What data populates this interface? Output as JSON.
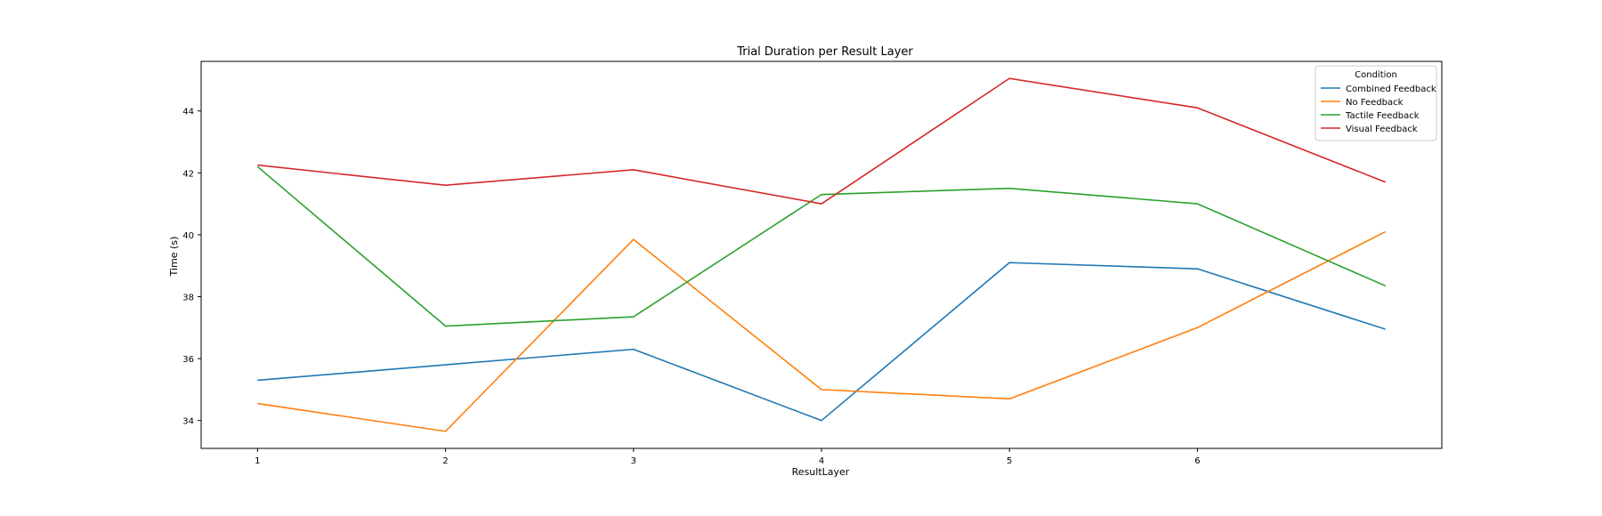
{
  "chart_data": {
    "type": "line",
    "title": "Trial Duration per Result Layer",
    "xlabel": "ResultLayer",
    "ylabel": "Time (s)",
    "x": [
      1,
      2,
      3,
      4,
      5,
      6,
      7
    ],
    "xticks": [
      "1",
      "2",
      "3",
      "4",
      "5",
      "6"
    ],
    "xlim": [
      0.7,
      7.3
    ],
    "ylim": [
      33.1,
      45.6
    ],
    "yticks": [
      34,
      36,
      38,
      40,
      42,
      44
    ],
    "grid": false,
    "legend": {
      "title": "Condition",
      "placement": "top-right"
    },
    "series": [
      {
        "name": "Combined Feedback",
        "color": "#1f77b4",
        "values": [
          35.3,
          35.8,
          36.3,
          34.0,
          39.1,
          38.9,
          36.95
        ]
      },
      {
        "name": "No Feedback",
        "color": "#ff7f0e",
        "values": [
          34.55,
          33.65,
          39.85,
          35.0,
          34.7,
          37.0,
          40.1
        ]
      },
      {
        "name": "Tactile Feedback",
        "color": "#2ca02c",
        "values": [
          42.2,
          37.05,
          37.35,
          41.3,
          41.5,
          41.0,
          38.35
        ]
      },
      {
        "name": "Visual Feedback",
        "color": "#d62728",
        "values": [
          42.25,
          41.6,
          42.1,
          41.0,
          45.05,
          44.1,
          41.7
        ]
      }
    ]
  }
}
